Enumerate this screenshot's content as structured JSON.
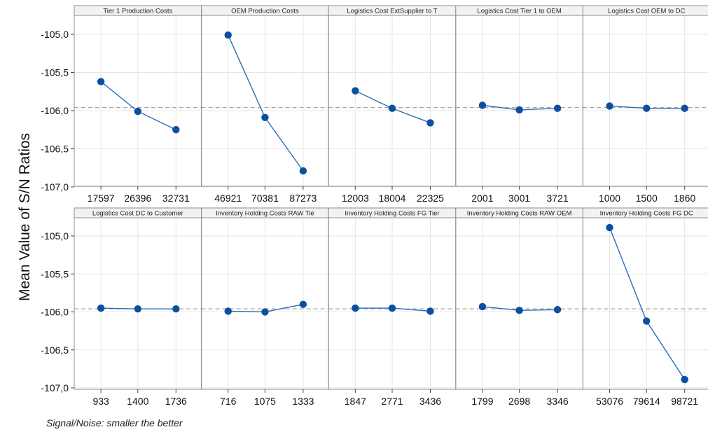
{
  "y_axis_label": "Mean Value of S/N Ratios",
  "footnote": "Signal/Noise: smaller the better",
  "colors": {
    "line": "#2d6db5",
    "point": "#0b4fa0",
    "reference": "#a6a6a6",
    "grid": "#e6e6e6",
    "header": "#f2f2f2",
    "border": "#8c8c8c"
  },
  "chart_data": {
    "type": "line",
    "title": "",
    "ylabel": "Mean Value of S/N Ratios",
    "ylim": [
      -107.05,
      -104.75
    ],
    "yticks": [
      -105.0,
      -105.5,
      -106.0,
      -106.5,
      -107.0
    ],
    "ytick_labels": [
      "-105,0",
      "-105,5",
      "-106,0",
      "-106,5",
      "-107,0"
    ],
    "reference_line": -105.96,
    "grid": true,
    "panels": [
      {
        "name": "Tier 1 Production Costs",
        "levels": [
          "17597",
          "26396",
          "32731"
        ],
        "values": [
          -105.62,
          -106.01,
          -106.25
        ]
      },
      {
        "name": "OEM Production Costs",
        "levels": [
          "46921",
          "70381",
          "87273"
        ],
        "values": [
          -105.01,
          -106.09,
          -106.79
        ]
      },
      {
        "name": "Logistics Cost ExtSupplier to T",
        "levels": [
          "12003",
          "18004",
          "22325"
        ],
        "values": [
          -105.74,
          -105.97,
          -106.16
        ]
      },
      {
        "name": "Logistics Cost Tier 1 to OEM",
        "levels": [
          "2001",
          "3001",
          "3721"
        ],
        "values": [
          -105.93,
          -105.99,
          -105.97
        ]
      },
      {
        "name": "Logistics Cost  OEM to DC",
        "levels": [
          "1000",
          "1500",
          "1860"
        ],
        "values": [
          -105.94,
          -105.97,
          -105.97
        ]
      },
      {
        "name": "Logistics Cost  DC to Customer",
        "levels": [
          "933",
          "1400",
          "1736"
        ],
        "values": [
          -105.95,
          -105.96,
          -105.96
        ]
      },
      {
        "name": "Inventory Holding Costs RAW Tie",
        "levels": [
          "716",
          "1075",
          "1333"
        ],
        "values": [
          -105.99,
          -106.0,
          -105.9
        ]
      },
      {
        "name": "Inventory Holding Costs FG Tier",
        "levels": [
          "1847",
          "2771",
          "3436"
        ],
        "values": [
          -105.95,
          -105.95,
          -105.99
        ]
      },
      {
        "name": "Inventory Holding Costs RAW OEM",
        "levels": [
          "1799",
          "2698",
          "3346"
        ],
        "values": [
          -105.93,
          -105.98,
          -105.97
        ]
      },
      {
        "name": "Inventory Holding Costs FG DC",
        "levels": [
          "53076",
          "79614",
          "98721"
        ],
        "values": [
          -104.89,
          -106.12,
          -106.89
        ]
      }
    ]
  }
}
